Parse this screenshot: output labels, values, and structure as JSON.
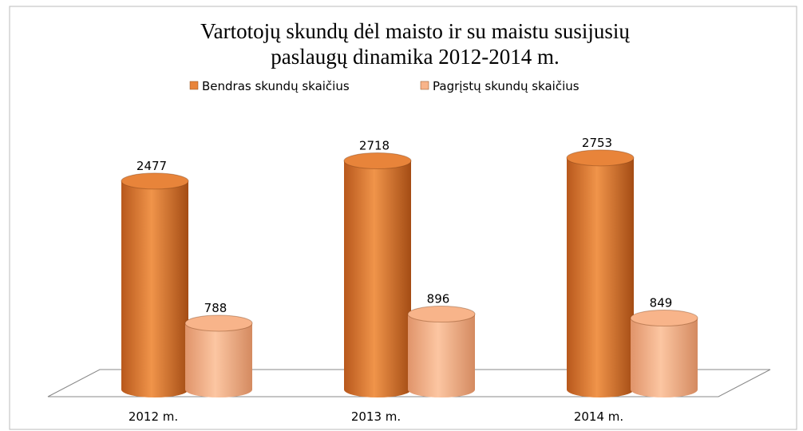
{
  "chart_data": {
    "type": "bar",
    "title": [
      "Vartotojų skundų dėl maisto ir su maistu susijusių",
      "paslaugų dinamika 2012-2014 m."
    ],
    "categories": [
      "2012 m.",
      "2013 m.",
      "2014 m."
    ],
    "series": [
      {
        "name": "Bendras skundų skaičius",
        "color": "#e8843a",
        "values": [
          2477,
          2718,
          2753
        ]
      },
      {
        "name": "Pagrįstų skundų skaičius",
        "color": "#f8b48a",
        "values": [
          788,
          896,
          849
        ]
      }
    ],
    "legend": "top",
    "data_labels": true
  }
}
